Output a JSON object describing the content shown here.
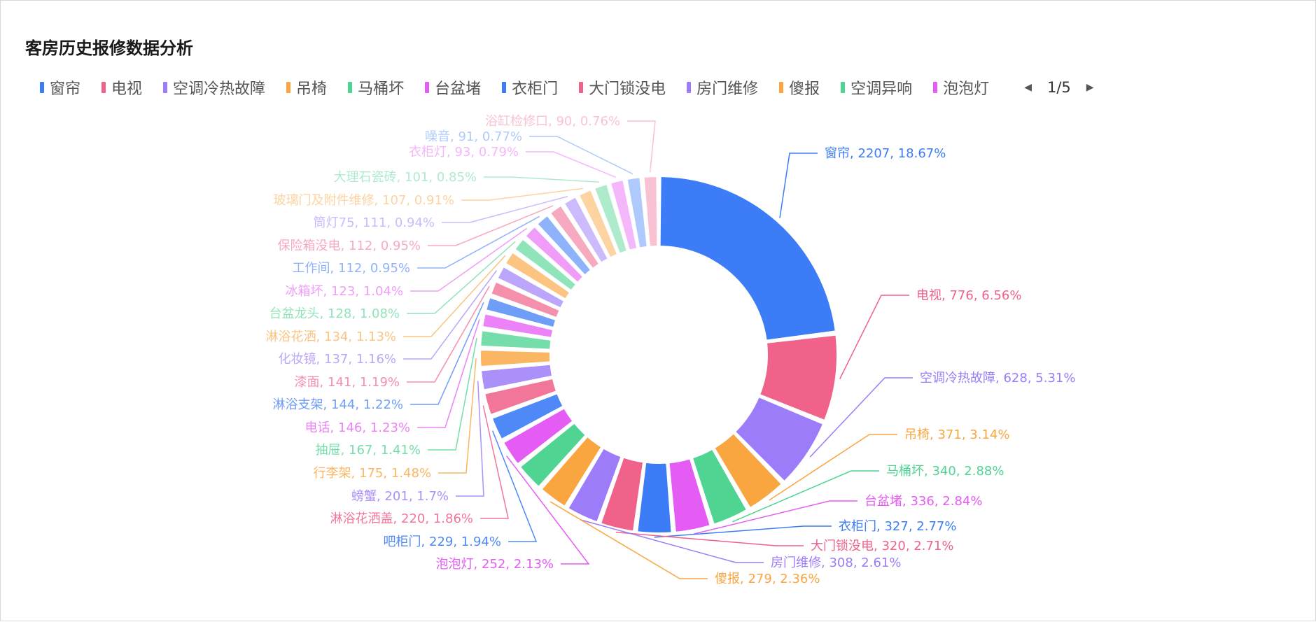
{
  "chart_data": {
    "type": "pie",
    "variant": "donut",
    "title": "客房历史报修数据分析",
    "legend": {
      "position": "top",
      "page": "1/5",
      "items": [
        "窗帘",
        "电视",
        "空调冷热故障",
        "吊椅",
        "马桶坏",
        "台盆堵",
        "衣柜门",
        "大门锁没电",
        "房门维修",
        "傻报",
        "空调异响",
        "泡泡灯"
      ]
    },
    "palette": [
      "#3c7cf7",
      "#f0628a",
      "#9d7cf9",
      "#f9a640",
      "#4fd492",
      "#e55cf5"
    ],
    "slices": [
      {
        "name": "窗帘",
        "value": 2207,
        "percent": "18.67%"
      },
      {
        "name": "电视",
        "value": 776,
        "percent": "6.56%"
      },
      {
        "name": "空调冷热故障",
        "value": 628,
        "percent": "5.31%"
      },
      {
        "name": "吊椅",
        "value": 371,
        "percent": "3.14%"
      },
      {
        "name": "马桶坏",
        "value": 340,
        "percent": "2.88%"
      },
      {
        "name": "台盆堵",
        "value": 336,
        "percent": "2.84%"
      },
      {
        "name": "衣柜门",
        "value": 327,
        "percent": "2.77%"
      },
      {
        "name": "大门锁没电",
        "value": 320,
        "percent": "2.71%"
      },
      {
        "name": "房门维修",
        "value": 308,
        "percent": "2.61%"
      },
      {
        "name": "傻报",
        "value": 279,
        "percent": "2.36%"
      },
      {
        "name": "空调异响",
        "value": null,
        "percent": null
      },
      {
        "name": "泡泡灯",
        "value": 252,
        "percent": "2.13%"
      },
      {
        "name": "吧柜门",
        "value": 229,
        "percent": "1.94%"
      },
      {
        "name": "淋浴花洒盖",
        "value": 220,
        "percent": "1.86%"
      },
      {
        "name": "螃蟹",
        "value": 201,
        "percent": "1.7%"
      },
      {
        "name": "行李架",
        "value": 175,
        "percent": "1.48%"
      },
      {
        "name": "抽屉",
        "value": 167,
        "percent": "1.41%"
      },
      {
        "name": "电话",
        "value": 146,
        "percent": "1.23%"
      },
      {
        "name": "淋浴支架",
        "value": 144,
        "percent": "1.22%"
      },
      {
        "name": "漆面",
        "value": 141,
        "percent": "1.19%"
      },
      {
        "name": "化妆镜",
        "value": 137,
        "percent": "1.16%"
      },
      {
        "name": "淋浴花洒",
        "value": 134,
        "percent": "1.13%"
      },
      {
        "name": "台盆龙头",
        "value": 128,
        "percent": "1.08%"
      },
      {
        "name": "冰箱坏",
        "value": 123,
        "percent": "1.04%"
      },
      {
        "name": "工作间",
        "value": 112,
        "percent": "0.95%"
      },
      {
        "name": "保险箱没电",
        "value": 112,
        "percent": "0.95%"
      },
      {
        "name": "筒灯75",
        "value": 111,
        "percent": "0.94%"
      },
      {
        "name": "玻璃门及附件维修",
        "value": 107,
        "percent": "0.91%"
      },
      {
        "name": "大理石瓷砖",
        "value": 101,
        "percent": "0.85%"
      },
      {
        "name": "衣柜灯",
        "value": 93,
        "percent": "0.79%"
      },
      {
        "name": "噪音",
        "value": 91,
        "percent": "0.77%"
      },
      {
        "name": "浴缸检修口",
        "value": 90,
        "percent": "0.76%"
      }
    ]
  }
}
